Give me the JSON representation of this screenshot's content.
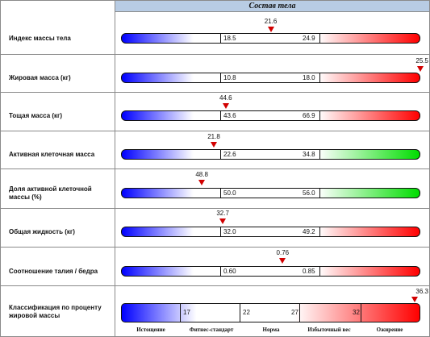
{
  "panel": {
    "title": "Состав тела"
  },
  "rows": [
    {
      "label": "Индекс массы тела",
      "low": "18.5",
      "high": "24.9",
      "value": "21.6",
      "level": 0.5,
      "scheme": "blue-red"
    },
    {
      "label": "Жировая масса (кг)",
      "low": "10.8",
      "high": "18.0",
      "value": "25.5",
      "level": 1.0,
      "scheme": "blue-red"
    },
    {
      "label": "Тощая масса (кг)",
      "low": "43.6",
      "high": "66.9",
      "value": "44.6",
      "level": 0.35,
      "scheme": "blue-red"
    },
    {
      "label": "Активная клеточная масса",
      "low": "22.6",
      "high": "34.8",
      "value": "21.8",
      "level": 0.31,
      "scheme": "blue-green"
    },
    {
      "label": "Доля активной клеточной массы (%)",
      "low": "50.0",
      "high": "56.0",
      "value": "48.8",
      "level": 0.27,
      "scheme": "blue-green"
    },
    {
      "label": "Общая жидкость (кг)",
      "low": "32.0",
      "high": "49.2",
      "value": "32.7",
      "level": 0.34,
      "scheme": "blue-red"
    },
    {
      "label": "Соотношение талия / бедра",
      "low": "0.60",
      "high": "0.85",
      "value": "0.76",
      "level": 0.54,
      "scheme": "blue-red"
    }
  ],
  "classification": {
    "label": "Классификация по проценту жировой массы",
    "value": "36.3",
    "level": 0.98,
    "thresholds": [
      "17",
      "22",
      "27",
      "32"
    ],
    "categories": [
      "Истощение",
      "Фитнес-стандарт",
      "Норма",
      "Избыточный вес",
      "Ожирение"
    ]
  },
  "colors": {
    "blue": "#0000ff",
    "red": "#ff0000",
    "green": "#00dd00",
    "marker": "#d10000",
    "header": "#b8cce4"
  }
}
